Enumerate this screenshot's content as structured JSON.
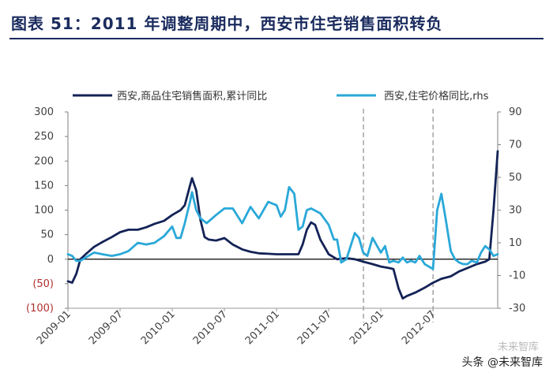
{
  "header": {
    "title": "图表 51：2011 年调整周期中，西安市住宅销售面积转负"
  },
  "watermark": {
    "text": "头条 @未来智库",
    "faint": "未来智库"
  },
  "chart_data": {
    "type": "line",
    "title": "图表 51：2011 年调整周期中，西安市住宅销售面积转负",
    "x_tick_labels": [
      "2009-01",
      "2009-07",
      "2010-01",
      "2010-07",
      "2011-01",
      "2011-07",
      "2012-01",
      "2012-07"
    ],
    "y_left": {
      "range": [
        -100,
        300
      ],
      "ticks": [
        300,
        250,
        200,
        150,
        100,
        50,
        0,
        -50,
        -100
      ],
      "tick_labels": [
        "300",
        "250",
        "200",
        "150",
        "100",
        "50",
        "0",
        "(50)",
        "(100)"
      ]
    },
    "y_right": {
      "range": [
        -30,
        90
      ],
      "ticks": [
        90,
        70,
        50,
        30,
        10,
        -10,
        -30
      ],
      "tick_labels": [
        "90",
        "70",
        "50",
        "30",
        "10",
        "-10",
        "-30"
      ]
    },
    "vlines": [
      {
        "x": 2011.833,
        "style": "dashed"
      },
      {
        "x": 2012.5,
        "style": "dashed"
      }
    ],
    "series": [
      {
        "name": "西安,商品住宅销售面积,累计同比",
        "axis": "left",
        "color": "#142357",
        "points": [
          [
            2009.0,
            -45
          ],
          [
            2009.04,
            -48
          ],
          [
            2009.08,
            -30
          ],
          [
            2009.12,
            0
          ],
          [
            2009.17,
            10
          ],
          [
            2009.25,
            25
          ],
          [
            2009.33,
            35
          ],
          [
            2009.42,
            45
          ],
          [
            2009.5,
            55
          ],
          [
            2009.58,
            60
          ],
          [
            2009.67,
            60
          ],
          [
            2009.75,
            65
          ],
          [
            2009.83,
            72
          ],
          [
            2009.92,
            78
          ],
          [
            2010.0,
            90
          ],
          [
            2010.04,
            95
          ],
          [
            2010.08,
            100
          ],
          [
            2010.12,
            110
          ],
          [
            2010.17,
            150
          ],
          [
            2010.19,
            165
          ],
          [
            2010.23,
            140
          ],
          [
            2010.27,
            80
          ],
          [
            2010.31,
            45
          ],
          [
            2010.35,
            40
          ],
          [
            2010.42,
            38
          ],
          [
            2010.5,
            43
          ],
          [
            2010.58,
            30
          ],
          [
            2010.67,
            20
          ],
          [
            2010.75,
            15
          ],
          [
            2010.83,
            12
          ],
          [
            2010.92,
            11
          ],
          [
            2011.0,
            10
          ],
          [
            2011.08,
            10
          ],
          [
            2011.17,
            10
          ],
          [
            2011.21,
            10
          ],
          [
            2011.25,
            30
          ],
          [
            2011.29,
            60
          ],
          [
            2011.33,
            75
          ],
          [
            2011.37,
            70
          ],
          [
            2011.42,
            40
          ],
          [
            2011.5,
            10
          ],
          [
            2011.58,
            0
          ],
          [
            2011.67,
            2
          ],
          [
            2011.75,
            0
          ],
          [
            2011.83,
            -5
          ],
          [
            2011.92,
            -10
          ],
          [
            2012.0,
            -15
          ],
          [
            2012.08,
            -18
          ],
          [
            2012.12,
            -20
          ],
          [
            2012.17,
            -60
          ],
          [
            2012.21,
            -80
          ],
          [
            2012.25,
            -75
          ],
          [
            2012.33,
            -68
          ],
          [
            2012.42,
            -58
          ],
          [
            2012.5,
            -48
          ],
          [
            2012.58,
            -40
          ],
          [
            2012.67,
            -35
          ],
          [
            2012.75,
            -25
          ],
          [
            2012.83,
            -18
          ],
          [
            2012.92,
            -10
          ],
          [
            2013.0,
            -5
          ],
          [
            2013.04,
            0
          ],
          [
            2013.08,
            100
          ],
          [
            2013.12,
            220
          ]
        ]
      },
      {
        "name": "西安,住宅价格同比,rhs",
        "axis": "right",
        "color": "#2aa8d8",
        "points": [
          [
            2009.0,
            3
          ],
          [
            2009.04,
            2
          ],
          [
            2009.08,
            -1
          ],
          [
            2009.12,
            -1
          ],
          [
            2009.17,
            1
          ],
          [
            2009.25,
            4
          ],
          [
            2009.33,
            3
          ],
          [
            2009.42,
            2
          ],
          [
            2009.5,
            3
          ],
          [
            2009.58,
            5
          ],
          [
            2009.67,
            10
          ],
          [
            2009.75,
            9
          ],
          [
            2009.83,
            10
          ],
          [
            2009.92,
            14
          ],
          [
            2010.0,
            20
          ],
          [
            2010.04,
            13
          ],
          [
            2010.08,
            13
          ],
          [
            2010.12,
            22
          ],
          [
            2010.17,
            35
          ],
          [
            2010.19,
            41
          ],
          [
            2010.23,
            30
          ],
          [
            2010.27,
            25
          ],
          [
            2010.33,
            22
          ],
          [
            2010.42,
            27
          ],
          [
            2010.5,
            31
          ],
          [
            2010.58,
            31
          ],
          [
            2010.67,
            22
          ],
          [
            2010.75,
            32
          ],
          [
            2010.83,
            25
          ],
          [
            2010.92,
            35
          ],
          [
            2011.0,
            33
          ],
          [
            2011.04,
            26
          ],
          [
            2011.08,
            30
          ],
          [
            2011.12,
            44
          ],
          [
            2011.17,
            40
          ],
          [
            2011.21,
            18
          ],
          [
            2011.25,
            20
          ],
          [
            2011.29,
            30
          ],
          [
            2011.33,
            31
          ],
          [
            2011.42,
            28
          ],
          [
            2011.5,
            21
          ],
          [
            2011.55,
            12
          ],
          [
            2011.58,
            12
          ],
          [
            2011.62,
            -2
          ],
          [
            2011.67,
            0
          ],
          [
            2011.75,
            16
          ],
          [
            2011.79,
            13
          ],
          [
            2011.83,
            4
          ],
          [
            2011.87,
            2
          ],
          [
            2011.92,
            13
          ],
          [
            2012.0,
            4
          ],
          [
            2012.04,
            8
          ],
          [
            2012.08,
            -2
          ],
          [
            2012.12,
            -1
          ],
          [
            2012.17,
            -2
          ],
          [
            2012.21,
            1
          ],
          [
            2012.25,
            -2
          ],
          [
            2012.29,
            -1
          ],
          [
            2012.33,
            -2
          ],
          [
            2012.37,
            2
          ],
          [
            2012.42,
            -3
          ],
          [
            2012.5,
            -6
          ],
          [
            2012.54,
            30
          ],
          [
            2012.58,
            40
          ],
          [
            2012.62,
            25
          ],
          [
            2012.67,
            5
          ],
          [
            2012.71,
            0
          ],
          [
            2012.75,
            -2
          ],
          [
            2012.79,
            -3
          ],
          [
            2012.83,
            -3
          ],
          [
            2012.87,
            -1
          ],
          [
            2012.92,
            -2
          ],
          [
            2012.96,
            4
          ],
          [
            2013.0,
            8
          ],
          [
            2013.04,
            6
          ],
          [
            2013.08,
            2
          ],
          [
            2013.12,
            3
          ]
        ]
      }
    ]
  }
}
